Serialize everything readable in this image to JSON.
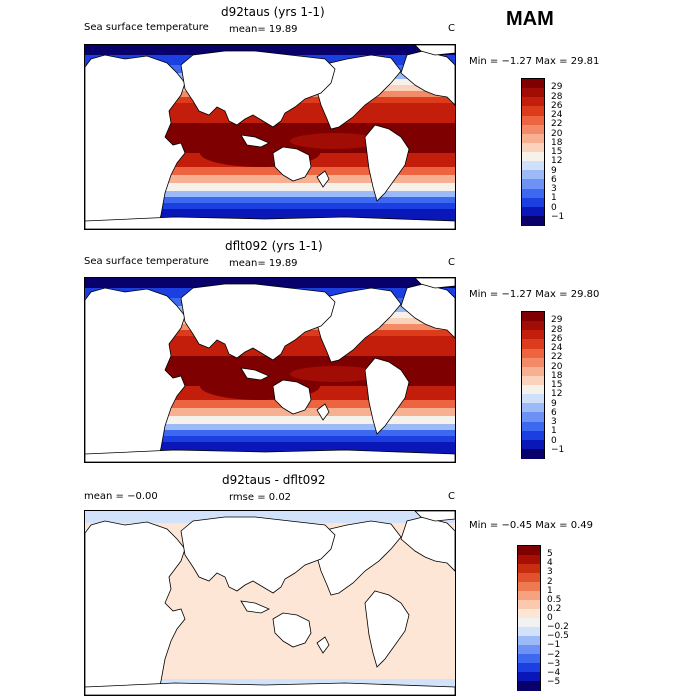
{
  "season": "MAM",
  "panels": [
    {
      "title": "d92taus (yrs 1-1)",
      "sub_left": "Sea surface temperature",
      "sub_mid": "mean=   19.89",
      "sub_right": "C",
      "min_max": "Min =   −1.27  Max =    29.81",
      "colorbar_labels": [
        "29",
        "28",
        "26",
        "24",
        "22",
        "20",
        "18",
        "15",
        "12",
        "9",
        "6",
        "3",
        "1",
        "0",
        "−1"
      ]
    },
    {
      "title": "dflt092 (yrs 1-1)",
      "sub_left": "Sea surface temperature",
      "sub_mid": "mean=   19.89",
      "sub_right": "C",
      "min_max": "Min =   −1.27  Max =    29.80",
      "colorbar_labels": [
        "29",
        "28",
        "26",
        "24",
        "22",
        "20",
        "18",
        "15",
        "12",
        "9",
        "6",
        "3",
        "1",
        "0",
        "−1"
      ]
    },
    {
      "title": "d92taus - dflt092",
      "sub_left": "mean =   −0.00",
      "sub_mid": "rmse =    0.02",
      "sub_right": "C",
      "min_max": "Min =   −0.45  Max =     0.49",
      "colorbar_labels": [
        "5",
        "4",
        "3",
        "2",
        "1",
        "0.5",
        "0.2",
        "0",
        "−0.2",
        "−0.5",
        "−1",
        "−2",
        "−3",
        "−4",
        "−5"
      ]
    }
  ],
  "chart_data": {
    "type": "heatmap",
    "variable": "Sea surface temperature",
    "units": "C",
    "panels": [
      {
        "title": "d92taus (yrs 1-1)",
        "mean": 19.89,
        "min": -1.27,
        "max": 29.81
      },
      {
        "title": "dflt092 (yrs 1-1)",
        "mean": 19.89,
        "min": -1.27,
        "max": 29.8
      },
      {
        "title": "d92taus - dflt092",
        "mean": -0.0,
        "rmse": 0.02,
        "min": -0.45,
        "max": 0.49
      }
    ],
    "sst_colors": [
      "#08006b",
      "#0a17b8",
      "#1b3fe0",
      "#3d68f0",
      "#6e91f5",
      "#9dbaf8",
      "#cfe0fb",
      "#f7f1ec",
      "#fbd3bd",
      "#f8b093",
      "#f48b68",
      "#ec6440",
      "#dd3c1c",
      "#c21e0b",
      "#a10c04",
      "#7e0000"
    ],
    "diff_colors": [
      "#08006b",
      "#0a17b8",
      "#1b3fe0",
      "#3d68f0",
      "#6e91f5",
      "#9dbaf8",
      "#d2e2fb",
      "#f2f2f2",
      "#fde6d5",
      "#fbc9ad",
      "#f6a27e",
      "#ee7a52",
      "#e1512b",
      "#c92d10",
      "#a70f04",
      "#7e0000"
    ]
  }
}
